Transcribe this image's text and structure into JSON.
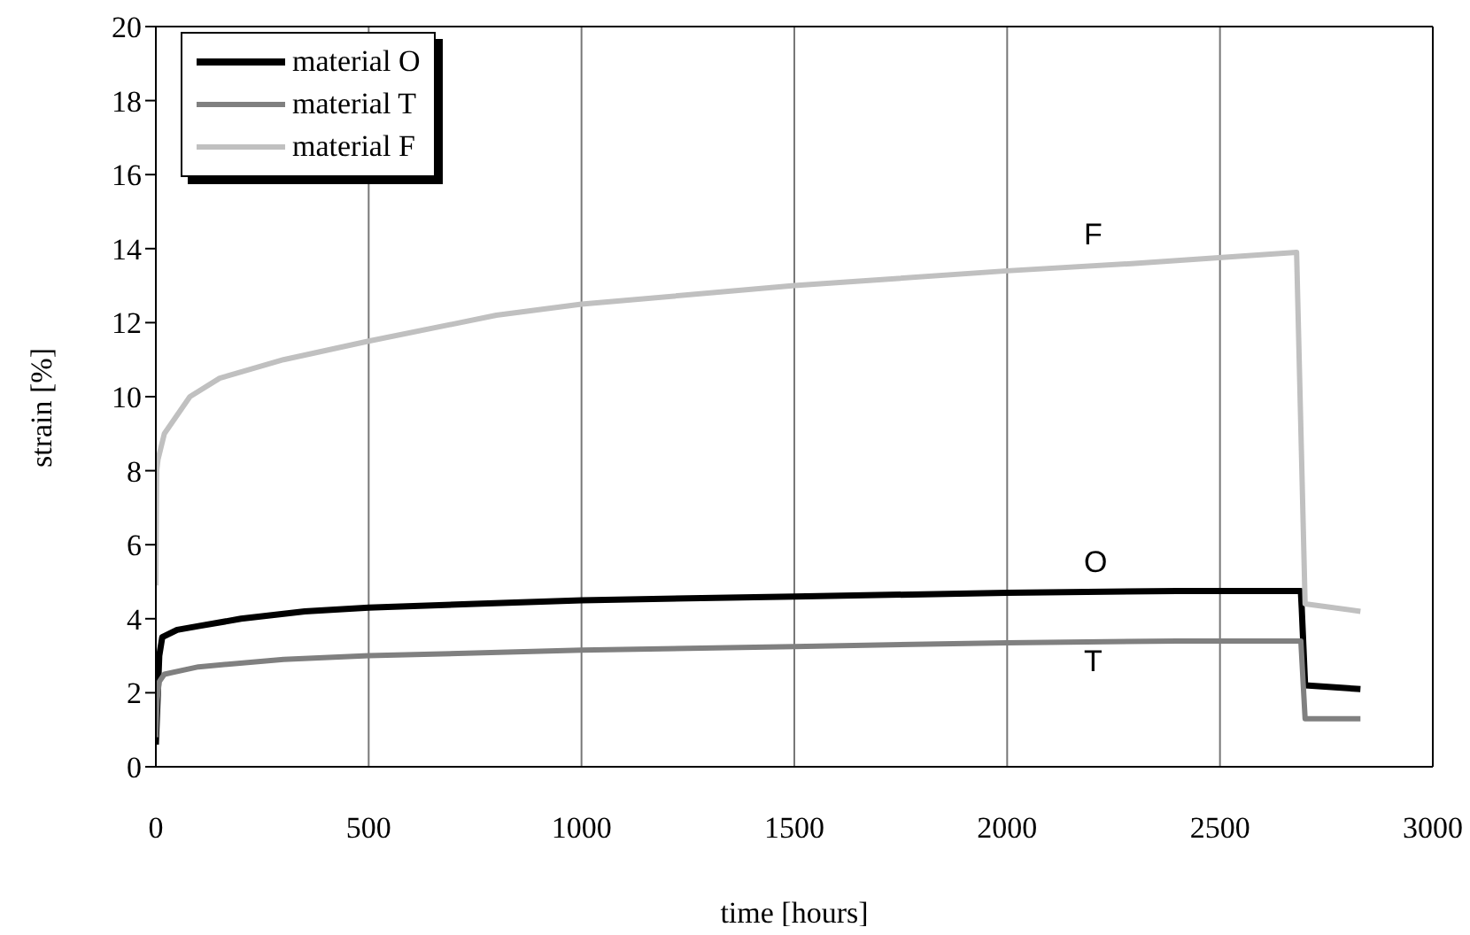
{
  "chart_data": {
    "type": "line",
    "xlabel": "time [hours]",
    "ylabel": "strain [%]",
    "xlim": [
      0,
      3000
    ],
    "xticks": [
      0,
      500,
      1000,
      1500,
      2000,
      2500,
      3000
    ],
    "ylim": [
      0,
      20
    ],
    "yticks": [
      0,
      2,
      4,
      6,
      8,
      10,
      12,
      14,
      16,
      18,
      20
    ],
    "grid": "x",
    "legend": "top left",
    "marker": "none",
    "line_style": "solid",
    "series": [
      {
        "name": "material O",
        "color": "#000000",
        "x": [
          0,
          3,
          8,
          15,
          50,
          100,
          200,
          350,
          500,
          750,
          1000,
          1500,
          2000,
          2400,
          2690,
          2692,
          2700,
          2830
        ],
        "values": [
          0.6,
          1.5,
          3.0,
          3.5,
          3.7,
          3.8,
          4.0,
          4.2,
          4.3,
          4.4,
          4.5,
          4.6,
          4.7,
          4.75,
          4.75,
          4.3,
          2.2,
          2.1
        ]
      },
      {
        "name": "material T",
        "color": "#808080",
        "x": [
          0,
          3,
          8,
          20,
          100,
          300,
          500,
          1000,
          1500,
          2000,
          2400,
          2690,
          2700,
          2830
        ],
        "values": [
          0.8,
          1.8,
          2.3,
          2.5,
          2.7,
          2.9,
          3.0,
          3.15,
          3.25,
          3.35,
          3.4,
          3.4,
          1.3,
          1.3
        ]
      },
      {
        "name": "material F",
        "color": "#c0c0c0",
        "x": [
          0,
          2,
          5,
          20,
          80,
          150,
          300,
          500,
          800,
          1000,
          1500,
          2000,
          2300,
          2680,
          2700,
          2830
        ],
        "values": [
          4.9,
          8.0,
          8.3,
          9.0,
          10.0,
          10.5,
          11.0,
          11.5,
          12.2,
          12.5,
          13.0,
          13.4,
          13.6,
          13.9,
          4.4,
          4.2
        ]
      }
    ],
    "annotations": [
      "F",
      "O",
      "T"
    ]
  }
}
